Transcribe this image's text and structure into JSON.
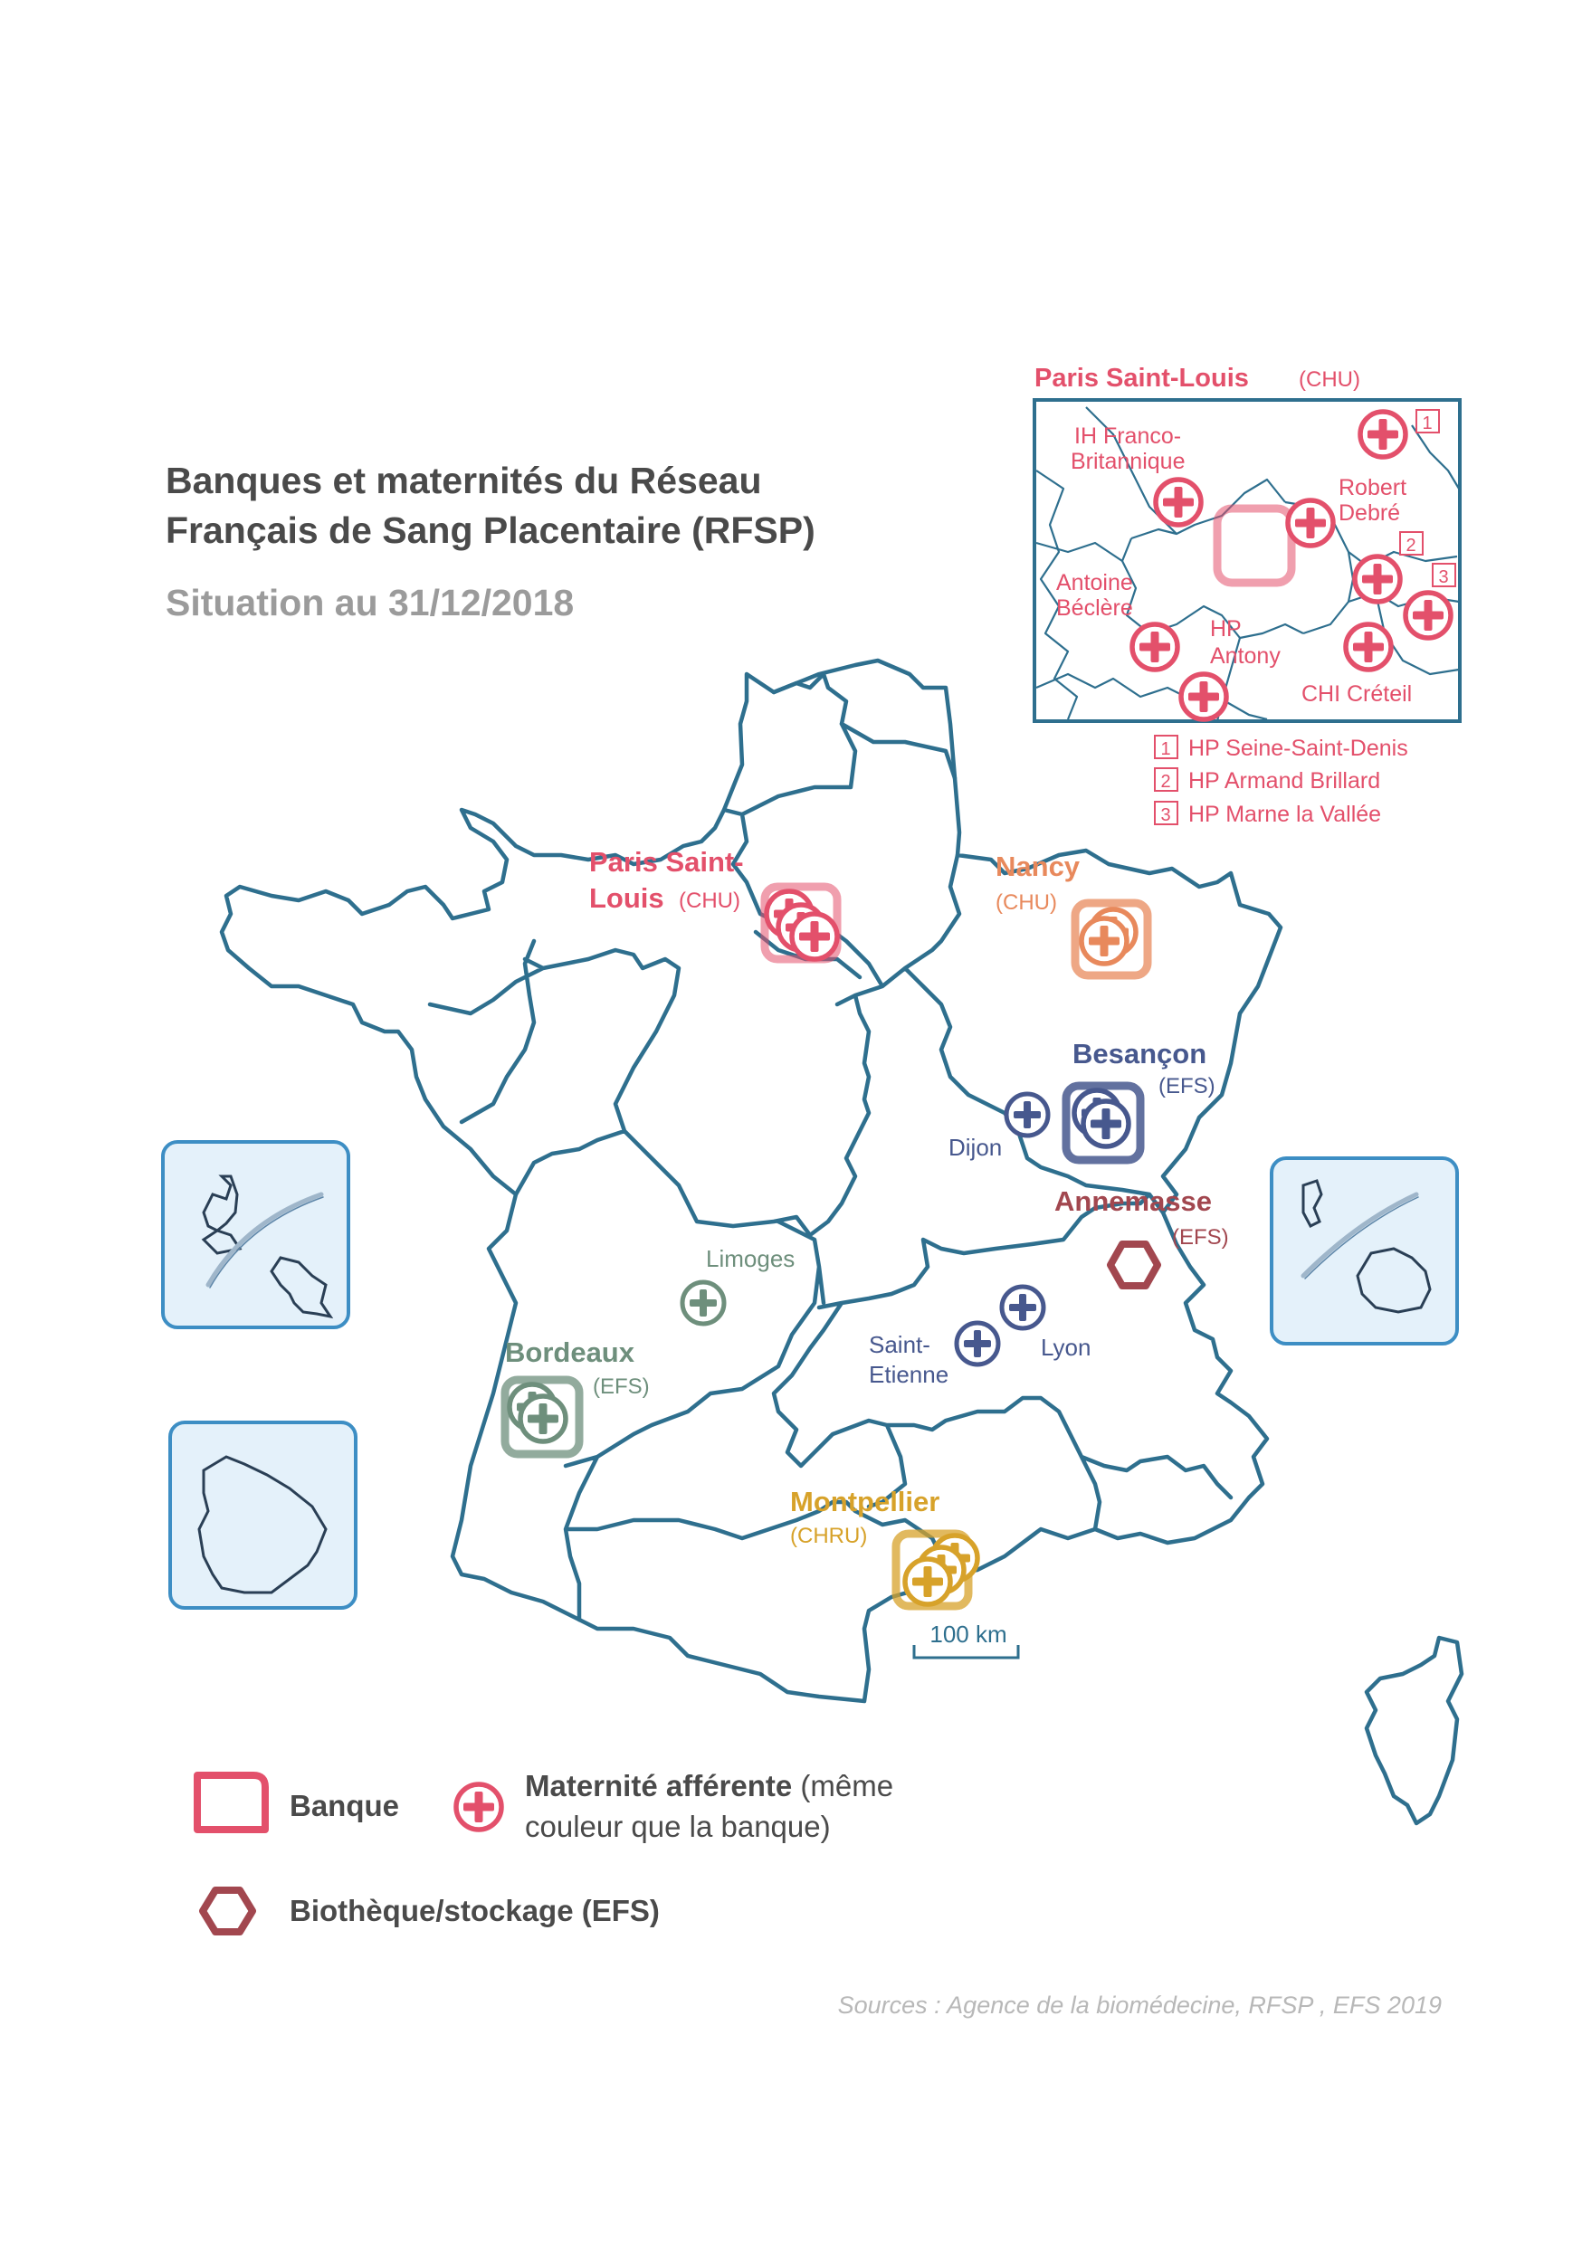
{
  "title": {
    "line1": "Banques et maternités du Réseau",
    "line2": "Français de Sang Placentaire (RFSP)",
    "subtitle": "Situation au 31/12/2018"
  },
  "colors": {
    "border": "#2e6f8e",
    "paris": "#e3506b",
    "nancy": "#e8895c",
    "besancon": "#47588e",
    "annemasse": "#a2474f",
    "bordeaux": "#6e8f7c",
    "montpellier": "#d7a22a",
    "dom_fill": "#e4f1fa",
    "dom_border": "#3d8ec4"
  },
  "banks": {
    "paris": {
      "name1": "Paris Saint-",
      "name2": "Louis",
      "type": "(CHU)"
    },
    "nancy": {
      "name": "Nancy",
      "type": "(CHU)"
    },
    "besancon": {
      "name": "Besançon",
      "type": "(EFS)"
    },
    "annemasse": {
      "name": "Annemasse",
      "type": "(EFS)"
    },
    "bordeaux": {
      "name": "Bordeaux",
      "type": "(EFS)"
    },
    "montpellier": {
      "name": "Montpellier",
      "type": "(CHRU)"
    }
  },
  "maternities": {
    "dijon": "Dijon",
    "limoges": "Limoges",
    "lyon": "Lyon",
    "saint_etienne1": "Saint-",
    "saint_etienne2": "Etienne"
  },
  "inset": {
    "title": "Paris Saint-Louis",
    "type": "(CHU)",
    "ih1": "IH Franco-",
    "ih2": "Britannique",
    "rd1": "Robert",
    "rd2": "Debré",
    "ab1": "Antoine",
    "ab2": "Béclère",
    "hpa1": "HP",
    "hpa2": "Antony",
    "chi": "CHI Créteil",
    "num1": "1",
    "num2": "2",
    "num3": "3",
    "footnotes": [
      {
        "num": "1",
        "text": "HP Seine-Saint-Denis"
      },
      {
        "num": "2",
        "text": "HP Armand Brillard"
      },
      {
        "num": "3",
        "text": "HP Marne la Vallée"
      }
    ]
  },
  "scale": "100 km",
  "legend": {
    "bank": "Banque",
    "maternity_bold": "Maternité afférente",
    "maternity_rest1": " (même",
    "maternity_rest2": "couleur que la banque)",
    "biotheque": "Biothèque/stockage (EFS)"
  },
  "source": "Sources : Agence de la biomédecine, RFSP , EFS 2019"
}
